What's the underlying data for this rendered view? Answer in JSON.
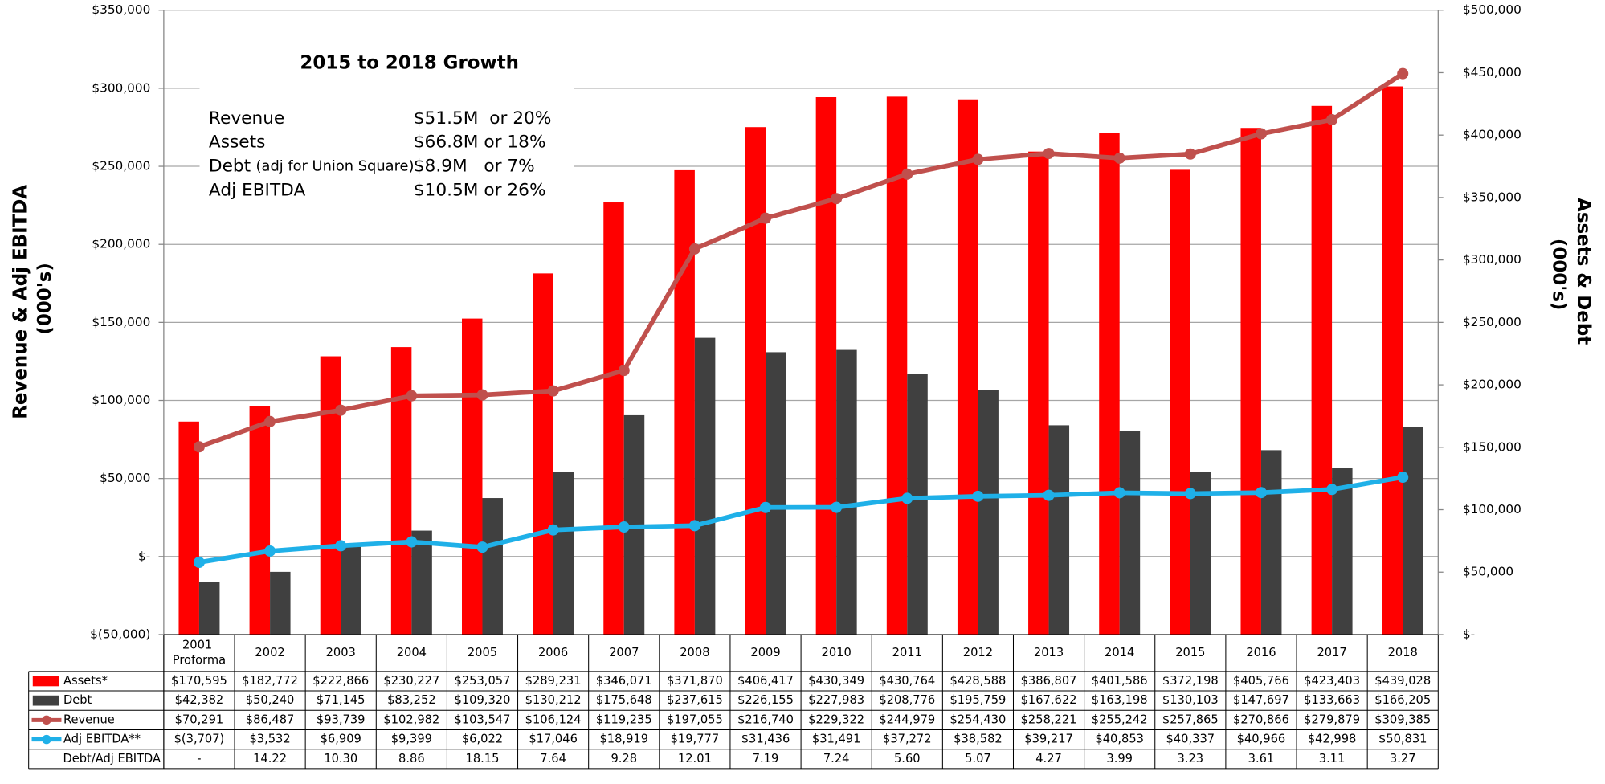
{
  "chart_data": {
    "type": "bar-line-table",
    "title": "2015 to 2018 Growth",
    "annotations": [
      {
        "label": "Revenue",
        "value": "$51.5M  or 20%"
      },
      {
        "label": "Assets",
        "value": "$66.8M or 18%"
      },
      {
        "label": "Debt",
        "note": "(adj for Union Square)",
        "value": "$8.9M   or 7%"
      },
      {
        "label": "Adj EBITDA",
        "value": "$10.5M or 26%"
      }
    ],
    "y_label": "Revenue & Adj EBITDA (000's)",
    "y2_label": "Assets & Debt (000's)",
    "categories": [
      "2001 Proforma",
      "2002",
      "2003",
      "2004",
      "2005",
      "2006",
      "2007",
      "2008",
      "2009",
      "2010",
      "2011",
      "2012",
      "2013",
      "2014",
      "2015",
      "2016",
      "2017",
      "2018"
    ],
    "ylim": [
      -50000,
      350000
    ],
    "yticks": [
      {
        "value": -50000,
        "label": "$(50,000)"
      },
      {
        "value": 0,
        "label": "$-"
      },
      {
        "value": 50000,
        "label": "$50,000"
      },
      {
        "value": 100000,
        "label": "$100,000"
      },
      {
        "value": 150000,
        "label": "$150,000"
      },
      {
        "value": 200000,
        "label": "$200,000"
      },
      {
        "value": 250000,
        "label": "$250,000"
      },
      {
        "value": 300000,
        "label": "$300,000"
      },
      {
        "value": 350000,
        "label": "$350,000"
      }
    ],
    "y2lim": [
      0,
      500000
    ],
    "y2ticks": [
      {
        "value": 0,
        "label": "$-"
      },
      {
        "value": 50000,
        "label": "$50,000"
      },
      {
        "value": 100000,
        "label": "$100,000"
      },
      {
        "value": 150000,
        "label": "$150,000"
      },
      {
        "value": 200000,
        "label": "$200,000"
      },
      {
        "value": 250000,
        "label": "$250,000"
      },
      {
        "value": 300000,
        "label": "$300,000"
      },
      {
        "value": 350000,
        "label": "$350,000"
      },
      {
        "value": 400000,
        "label": "$400,000"
      },
      {
        "value": 450000,
        "label": "$450,000"
      },
      {
        "value": 500000,
        "label": "$500,000"
      }
    ],
    "grid": true,
    "series": [
      {
        "name": "Assets*",
        "kind": "bar",
        "axis": "y2",
        "color": "#ff0000",
        "values": [
          170595,
          182772,
          222866,
          230227,
          253057,
          289231,
          346071,
          371870,
          406417,
          430349,
          430764,
          428588,
          386807,
          401586,
          372198,
          405766,
          423403,
          439028
        ],
        "value_labels": [
          "$170,595",
          "$182,772",
          "$222,866",
          "$230,227",
          "$253,057",
          "$289,231",
          "$346,071",
          "$371,870",
          "$406,417",
          "$430,349",
          "$430,764",
          "$428,588",
          "$386,807",
          "$401,586",
          "$372,198",
          "$405,766",
          "$423,403",
          "$439,028"
        ]
      },
      {
        "name": "Debt",
        "kind": "bar",
        "axis": "y2",
        "color": "#404040",
        "values": [
          42382,
          50240,
          71145,
          83252,
          109320,
          130212,
          175648,
          237615,
          226155,
          227983,
          208776,
          195759,
          167622,
          163198,
          130103,
          147697,
          133663,
          166205
        ],
        "value_labels": [
          "$42,382",
          "$50,240",
          "$71,145",
          "$83,252",
          "$109,320",
          "$130,212",
          "$175,648",
          "$237,615",
          "$226,155",
          "$227,983",
          "$208,776",
          "$195,759",
          "$167,622",
          "$163,198",
          "$130,103",
          "$147,697",
          "$133,663",
          "$166,205"
        ]
      },
      {
        "name": "Revenue",
        "kind": "line",
        "color": "#c0504d",
        "values": [
          70291,
          86487,
          93739,
          102982,
          103547,
          106124,
          119235,
          197055,
          216740,
          229322,
          244979,
          254430,
          258221,
          255242,
          257865,
          270866,
          279879,
          309385
        ],
        "value_labels": [
          "$70,291",
          "$86,487",
          "$93,739",
          "$102,982",
          "$103,547",
          "$106,124",
          "$119,235",
          "$197,055",
          "$216,740",
          "$229,322",
          "$244,979",
          "$254,430",
          "$258,221",
          "$255,242",
          "$257,865",
          "$270,866",
          "$279,879",
          "$309,385"
        ]
      },
      {
        "name": "Adj EBITDA**",
        "kind": "line",
        "color": "#1fb0e8",
        "values": [
          -3707,
          3532,
          6909,
          9399,
          6022,
          17046,
          18919,
          19777,
          31436,
          31491,
          37272,
          38582,
          39217,
          40853,
          40337,
          40966,
          42998,
          50831
        ],
        "value_labels": [
          "$(3,707)",
          "$3,532",
          "$6,909",
          "$9,399",
          "$6,022",
          "$17,046",
          "$18,919",
          "$19,777",
          "$31,436",
          "$31,491",
          "$37,272",
          "$38,582",
          "$39,217",
          "$40,853",
          "$40,337",
          "$40,966",
          "$42,998",
          "$50,831"
        ]
      },
      {
        "name": "Debt/Adj EBITDA",
        "kind": "table",
        "values": [
          null,
          14.22,
          10.3,
          8.86,
          18.15,
          7.64,
          9.28,
          12.01,
          7.19,
          7.24,
          5.6,
          5.07,
          4.27,
          3.99,
          3.23,
          3.61,
          3.11,
          3.27
        ],
        "value_labels": [
          "-",
          "14.22",
          "10.30",
          "8.86",
          "18.15",
          "7.64",
          "9.28",
          "12.01",
          "7.19",
          "7.24",
          "5.60",
          "5.07",
          "4.27",
          "3.99",
          "3.23",
          "3.61",
          "3.11",
          "3.27"
        ]
      }
    ]
  }
}
